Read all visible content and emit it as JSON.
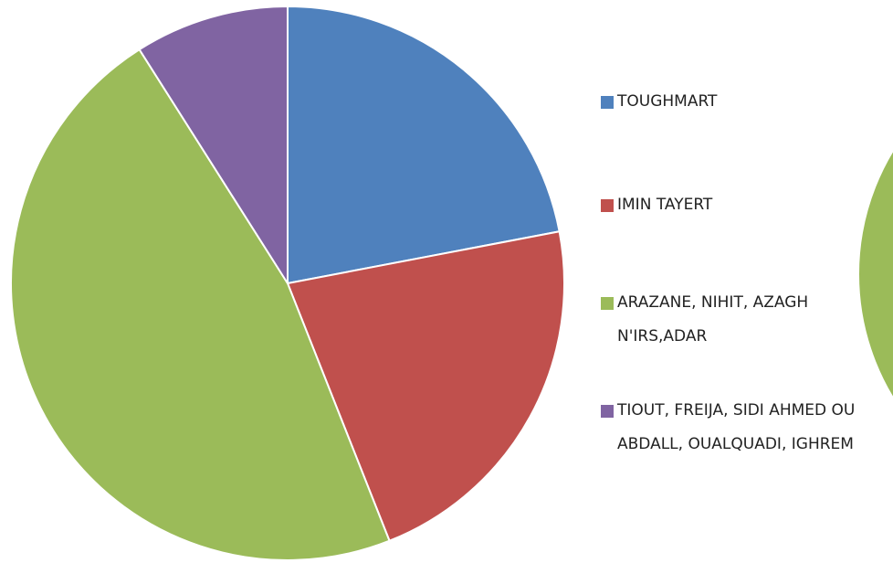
{
  "chart_data": {
    "type": "pie",
    "categories": [
      "TOUGHMART",
      "IMIN TAYERT",
      "ARAZANE, NIHIT, AZAGH N'IRS,ADAR",
      "TIOUT, FREIJA, SIDI AHMED OU ABDALL, OUALQUADI, IGHREM"
    ],
    "values": [
      22,
      22,
      47,
      9
    ],
    "colors": [
      "#4f81bd",
      "#c0504d",
      "#9bbb59",
      "#8064a2"
    ],
    "legend": "right"
  }
}
